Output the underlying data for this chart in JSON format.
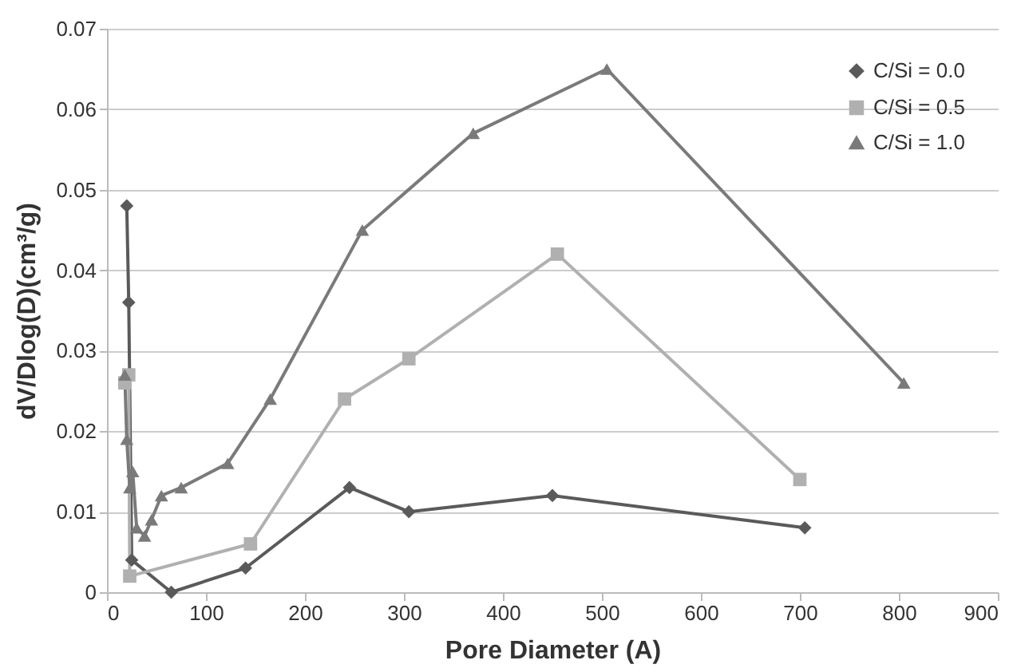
{
  "chart_data": {
    "type": "line",
    "xlabel": "Pore Diameter (A)",
    "ylabel": "dV/Dlog(D)(cm³/g)",
    "xlim": [
      0,
      900
    ],
    "xticks": [
      0,
      100,
      200,
      300,
      400,
      500,
      600,
      700,
      800,
      900
    ],
    "ylim": [
      0,
      0.07
    ],
    "yticks": [
      0,
      0.01,
      0.02,
      0.03,
      0.04,
      0.05,
      0.06,
      0.07
    ],
    "grid": "y",
    "legend": "top right",
    "series": [
      {
        "name": "C/Si = 0.0",
        "color": "#5a5a5a",
        "marker": "diamond",
        "x": [
          20,
          22,
          25,
          65,
          140,
          245,
          305,
          450,
          705
        ],
        "values": [
          0.048,
          0.036,
          0.004,
          0.0,
          0.003,
          0.013,
          0.01,
          0.012,
          0.008
        ]
      },
      {
        "name": "C/Si = 0.5",
        "color": "#b0b0b0",
        "marker": "square",
        "x": [
          18,
          22,
          23,
          145,
          240,
          305,
          455,
          700
        ],
        "values": [
          0.026,
          0.027,
          0.002,
          0.006,
          0.024,
          0.029,
          0.042,
          0.014
        ]
      },
      {
        "name": "C/Si = 1.0",
        "color": "#7a7a7a",
        "marker": "triangle",
        "x": [
          18,
          20,
          23,
          26,
          30,
          38,
          45,
          55,
          75,
          122,
          165,
          258,
          370,
          505,
          805
        ],
        "values": [
          0.027,
          0.019,
          0.013,
          0.015,
          0.008,
          0.007,
          0.009,
          0.012,
          0.013,
          0.016,
          0.024,
          0.045,
          0.057,
          0.065,
          0.026
        ]
      }
    ]
  }
}
